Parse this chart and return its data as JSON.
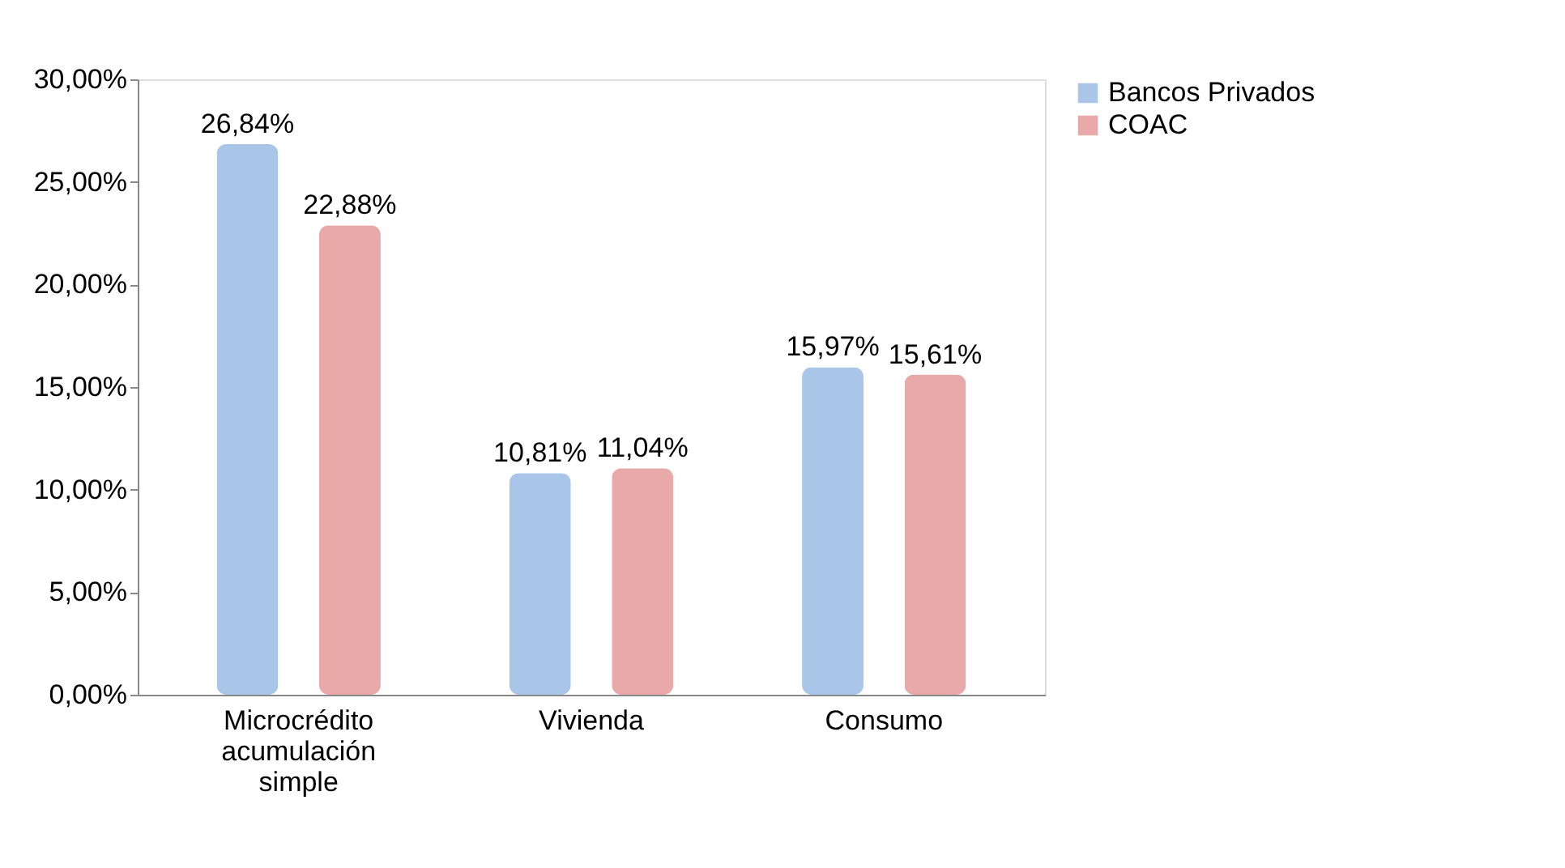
{
  "chart_data": {
    "type": "bar",
    "categories": [
      "Microcrédito acumulación simple",
      "Vivienda",
      "Consumo"
    ],
    "series": [
      {
        "name": "Bancos Privados",
        "color": "#a9c5e8",
        "values": [
          26.84,
          10.81,
          15.97
        ],
        "value_labels": [
          "26,84%",
          "10,81%",
          "15,97%"
        ]
      },
      {
        "name": "COAC",
        "color": "#e8a9a8",
        "values": [
          22.88,
          11.04,
          15.61
        ],
        "value_labels": [
          "22,88%",
          "11,04%",
          "15,61%"
        ]
      }
    ],
    "ylim": [
      0,
      30
    ],
    "yticks": [
      {
        "value": 0,
        "label": "0,00%"
      },
      {
        "value": 5,
        "label": "5,00%"
      },
      {
        "value": 10,
        "label": "10,00%"
      },
      {
        "value": 15,
        "label": "15,00%"
      },
      {
        "value": 20,
        "label": "20,00%"
      },
      {
        "value": 25,
        "label": "25,00%"
      },
      {
        "value": 30,
        "label": "30,00%"
      }
    ],
    "grid": false,
    "legend": "right"
  }
}
